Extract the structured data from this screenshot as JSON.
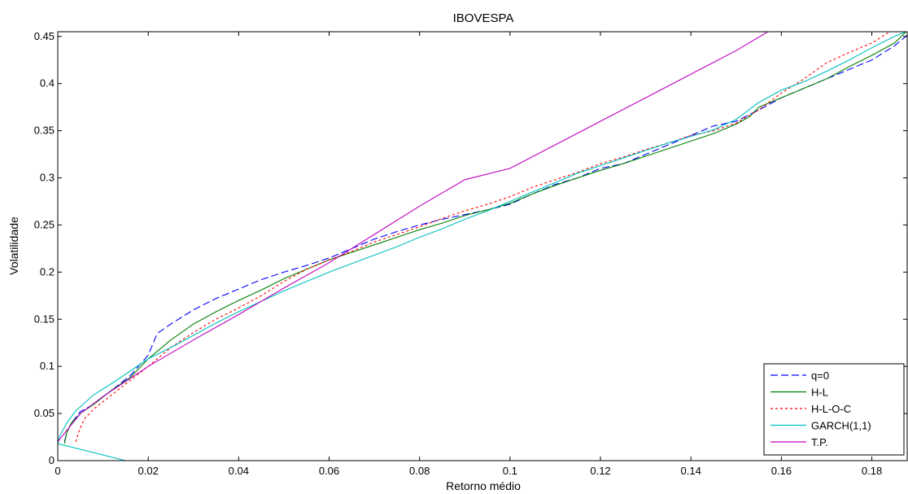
{
  "chart_data": {
    "type": "line",
    "title": "IBOVESPA",
    "xlabel": "Retorno médio",
    "ylabel": "Volatilidade",
    "xlim": [
      0,
      0.188
    ],
    "ylim": [
      0,
      0.455
    ],
    "xticks": [
      0,
      0.02,
      0.04,
      0.06,
      0.08,
      0.1,
      0.12,
      0.14,
      0.16,
      0.18
    ],
    "xtick_labels": [
      "0",
      "0.02",
      "0.04",
      "0.06",
      "0.08",
      "0.1",
      "0.12",
      "0.14",
      "0.16",
      "0.18"
    ],
    "yticks": [
      0,
      0.05,
      0.1,
      0.15,
      0.2,
      0.25,
      0.3,
      0.35,
      0.4,
      0.45
    ],
    "ytick_labels": [
      "0",
      "0.05",
      "0.1",
      "0.15",
      "0.2",
      "0.25",
      "0.3",
      "0.35",
      "0.4",
      "0.45"
    ],
    "grid": false,
    "legend_position": "bottom-right",
    "series": [
      {
        "name": "q=0",
        "color": "#0000ff",
        "dash": "dashed",
        "x": [
          0.0015,
          0.002,
          0.003,
          0.005,
          0.008,
          0.012,
          0.016,
          0.02,
          0.022,
          0.025,
          0.03,
          0.035,
          0.04,
          0.045,
          0.05,
          0.055,
          0.06,
          0.065,
          0.07,
          0.075,
          0.08,
          0.085,
          0.09,
          0.095,
          0.1,
          0.105,
          0.11,
          0.115,
          0.12,
          0.125,
          0.13,
          0.135,
          0.14,
          0.145,
          0.15,
          0.155,
          0.16,
          0.165,
          0.17,
          0.175,
          0.18,
          0.185,
          0.188
        ],
        "y": [
          0.02,
          0.03,
          0.04,
          0.052,
          0.06,
          0.075,
          0.09,
          0.112,
          0.135,
          0.145,
          0.16,
          0.172,
          0.182,
          0.192,
          0.2,
          0.207,
          0.215,
          0.225,
          0.235,
          0.243,
          0.25,
          0.256,
          0.261,
          0.266,
          0.272,
          0.283,
          0.293,
          0.3,
          0.31,
          0.315,
          0.325,
          0.335,
          0.345,
          0.355,
          0.36,
          0.372,
          0.385,
          0.395,
          0.405,
          0.415,
          0.425,
          0.44,
          0.452
        ]
      },
      {
        "name": "H-L",
        "color": "#008000",
        "dash": "solid",
        "x": [
          0.0015,
          0.002,
          0.003,
          0.005,
          0.008,
          0.012,
          0.016,
          0.02,
          0.025,
          0.03,
          0.035,
          0.04,
          0.045,
          0.05,
          0.055,
          0.06,
          0.065,
          0.07,
          0.075,
          0.08,
          0.085,
          0.09,
          0.095,
          0.1,
          0.105,
          0.11,
          0.115,
          0.12,
          0.125,
          0.13,
          0.135,
          0.14,
          0.145,
          0.15,
          0.153,
          0.155,
          0.16,
          0.165,
          0.17,
          0.175,
          0.18,
          0.185,
          0.188
        ],
        "y": [
          0.018,
          0.03,
          0.04,
          0.05,
          0.06,
          0.075,
          0.088,
          0.108,
          0.128,
          0.145,
          0.158,
          0.17,
          0.181,
          0.193,
          0.203,
          0.213,
          0.221,
          0.229,
          0.237,
          0.245,
          0.252,
          0.26,
          0.266,
          0.273,
          0.283,
          0.292,
          0.3,
          0.308,
          0.315,
          0.323,
          0.331,
          0.339,
          0.347,
          0.357,
          0.365,
          0.375,
          0.385,
          0.395,
          0.405,
          0.418,
          0.43,
          0.443,
          0.457
        ]
      },
      {
        "name": "H-L-O-C",
        "color": "#ff0000",
        "dash": "dotted",
        "x": [
          0.004,
          0.0045,
          0.005,
          0.006,
          0.008,
          0.012,
          0.016,
          0.02,
          0.025,
          0.03,
          0.035,
          0.04,
          0.045,
          0.05,
          0.055,
          0.06,
          0.065,
          0.07,
          0.075,
          0.08,
          0.085,
          0.09,
          0.095,
          0.1,
          0.105,
          0.11,
          0.115,
          0.12,
          0.125,
          0.13,
          0.135,
          0.14,
          0.145,
          0.15,
          0.155,
          0.16,
          0.165,
          0.17,
          0.175,
          0.18,
          0.185
        ],
        "y": [
          0.02,
          0.028,
          0.035,
          0.045,
          0.055,
          0.07,
          0.085,
          0.1,
          0.12,
          0.136,
          0.15,
          0.162,
          0.175,
          0.19,
          0.203,
          0.213,
          0.222,
          0.232,
          0.24,
          0.248,
          0.257,
          0.265,
          0.272,
          0.28,
          0.29,
          0.298,
          0.306,
          0.315,
          0.322,
          0.33,
          0.337,
          0.345,
          0.35,
          0.358,
          0.372,
          0.39,
          0.405,
          0.422,
          0.433,
          0.443,
          0.458
        ]
      },
      {
        "name": "GARCH(1,1)",
        "color": "#00bfbf",
        "dash": "solid",
        "x": [
          0.015,
          0.0,
          0.0003,
          0.002,
          0.004,
          0.008,
          0.012,
          0.016,
          0.02,
          0.025,
          0.03,
          0.035,
          0.04,
          0.045,
          0.05,
          0.055,
          0.06,
          0.065,
          0.07,
          0.075,
          0.08,
          0.085,
          0.09,
          0.095,
          0.1,
          0.105,
          0.11,
          0.115,
          0.12,
          0.125,
          0.13,
          0.135,
          0.14,
          0.145,
          0.15,
          0.155,
          0.16,
          0.165,
          0.17,
          0.175,
          0.18,
          0.185,
          0.188
        ],
        "y": [
          0.0,
          0.018,
          0.025,
          0.04,
          0.053,
          0.07,
          0.082,
          0.095,
          0.108,
          0.12,
          0.133,
          0.146,
          0.158,
          0.169,
          0.18,
          0.19,
          0.2,
          0.209,
          0.218,
          0.227,
          0.237,
          0.246,
          0.256,
          0.265,
          0.275,
          0.285,
          0.295,
          0.305,
          0.313,
          0.321,
          0.329,
          0.337,
          0.344,
          0.351,
          0.362,
          0.38,
          0.393,
          0.402,
          0.413,
          0.425,
          0.438,
          0.45,
          0.456
        ]
      },
      {
        "name": "T.P.",
        "color": "#bf00bf",
        "dash": "solid",
        "x": [
          0.0,
          0.005,
          0.01,
          0.02,
          0.03,
          0.04,
          0.05,
          0.06,
          0.07,
          0.08,
          0.09,
          0.1,
          0.11,
          0.12,
          0.13,
          0.14,
          0.15,
          0.157
        ],
        "y": [
          0.02,
          0.05,
          0.068,
          0.1,
          0.128,
          0.155,
          0.183,
          0.21,
          0.24,
          0.27,
          0.298,
          0.31,
          0.335,
          0.36,
          0.385,
          0.41,
          0.435,
          0.455
        ]
      }
    ]
  }
}
